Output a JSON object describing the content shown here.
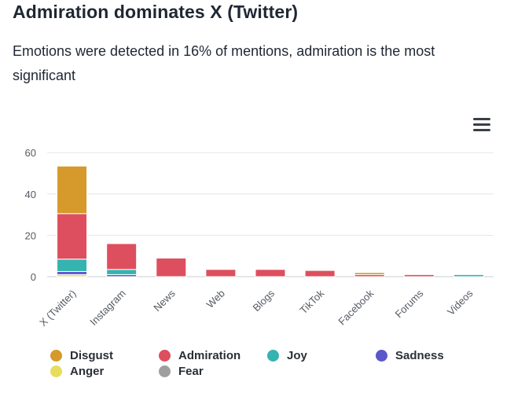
{
  "header": {
    "title": "Admiration dominates X (Twitter)",
    "subtitle": "Emotions were detected in 16% of mentions, admiration is the most significant"
  },
  "menu": {
    "icon": "hamburger-menu-icon"
  },
  "chart_data": {
    "type": "bar",
    "stacked": true,
    "title": "Admiration dominates X (Twitter)",
    "categories": [
      "X (Twitter)",
      "Instagram",
      "News",
      "Web",
      "Blogs",
      "TikTok",
      "Facebook",
      "Forums",
      "Videos"
    ],
    "yticks": [
      "0",
      "20",
      "40",
      "60"
    ],
    "ylim": [
      0,
      65
    ],
    "grid": true,
    "legend_position": "bottom",
    "series": [
      {
        "name": "Anger",
        "color": "#e8dc5c",
        "values": [
          1,
          0,
          0,
          0,
          0,
          0,
          0,
          0,
          0
        ]
      },
      {
        "name": "Fear",
        "color": "#9e9e9e",
        "values": [
          0,
          0,
          0,
          0,
          0,
          0,
          0,
          0,
          0
        ]
      },
      {
        "name": "Sadness",
        "color": "#5b57c9",
        "values": [
          1.5,
          1,
          0,
          0,
          0,
          0,
          0,
          0,
          0
        ]
      },
      {
        "name": "Joy",
        "color": "#35b3b1",
        "values": [
          6,
          2.5,
          0,
          0,
          0,
          0,
          0,
          0,
          1
        ]
      },
      {
        "name": "Admiration",
        "color": "#dd4f5e",
        "values": [
          22,
          12.5,
          9,
          3.5,
          3.5,
          3,
          1,
          1,
          0
        ]
      },
      {
        "name": "Disgust",
        "color": "#d6992b",
        "values": [
          23,
          0,
          0,
          0,
          0,
          0,
          1,
          0,
          0
        ]
      }
    ]
  },
  "legend": {
    "items": [
      {
        "label": "Disgust",
        "color": "#d6992b"
      },
      {
        "label": "Admiration",
        "color": "#dd4f5e"
      },
      {
        "label": "Joy",
        "color": "#35b3b1"
      },
      {
        "label": "Sadness",
        "color": "#5b57c9"
      },
      {
        "label": "Anger",
        "color": "#e8dc5c"
      },
      {
        "label": "Fear",
        "color": "#9e9e9e"
      }
    ]
  }
}
